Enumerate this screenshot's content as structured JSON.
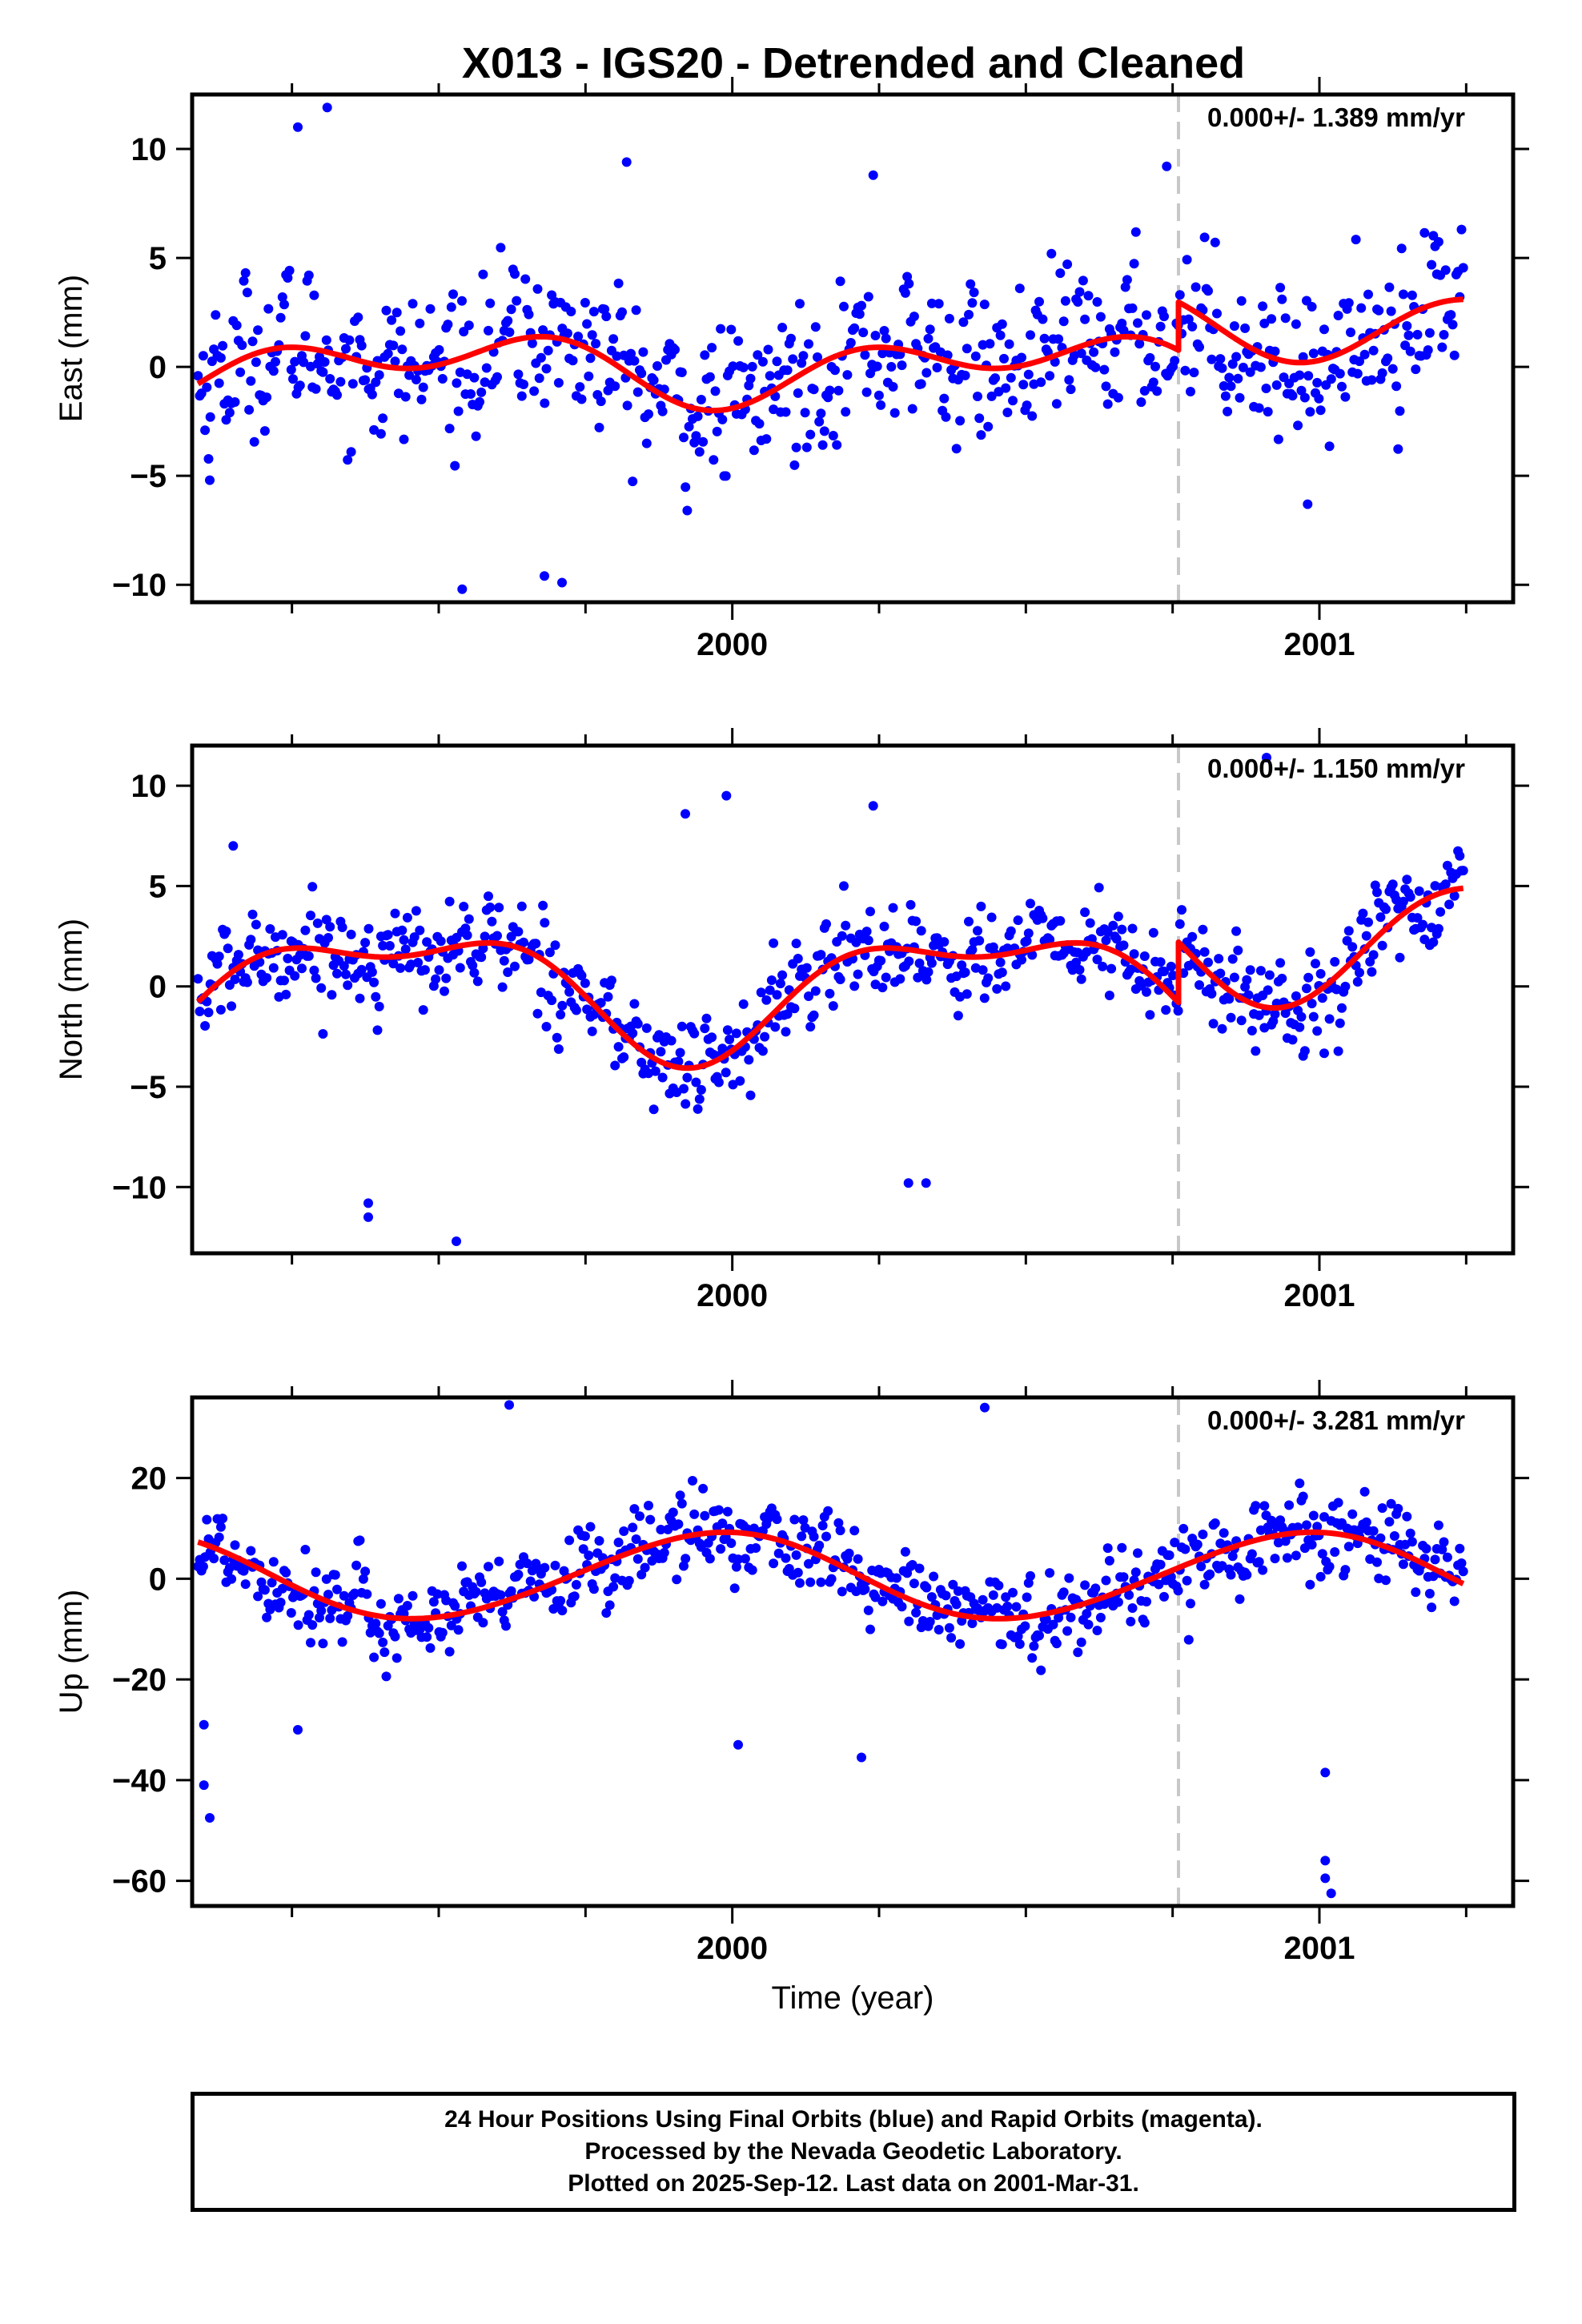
{
  "title": "X013 - IGS20 - Detrended and Cleaned",
  "chart_data": [
    {
      "type": "scatter",
      "ylabel": "East (mm)",
      "xlabel": "",
      "xlim": [
        1999.08,
        2001.33
      ],
      "ylim": [
        -10.8,
        12.5
      ],
      "yticks": [
        -10,
        -5,
        0,
        5,
        10
      ],
      "xtick_labels": [
        "2000",
        "2001"
      ],
      "annotation": "0.000+/- 1.389 mm/yr",
      "break_epoch": 2000.76,
      "fit": {
        "offset": 0.0,
        "a1": 0.0,
        "b1": -1.0,
        "a2": 0.5,
        "b2": -0.9,
        "break_jump": 2.2
      },
      "scatter_sigma": 2.6,
      "outliers": [
        [
          1999.26,
          11.0
        ],
        [
          1999.31,
          11.9
        ],
        [
          1999.54,
          -10.2
        ],
        [
          1999.68,
          -9.6
        ],
        [
          1999.71,
          -9.9
        ],
        [
          1999.82,
          9.4
        ],
        [
          2000.24,
          8.8
        ],
        [
          2000.74,
          9.2
        ],
        [
          1999.11,
          -5.2
        ],
        [
          2000.98,
          -6.3
        ]
      ]
    },
    {
      "type": "scatter",
      "ylabel": "North (mm)",
      "xlabel": "",
      "xlim": [
        1999.08,
        2001.33
      ],
      "ylim": [
        -13.3,
        12.0
      ],
      "yticks": [
        -10,
        -5,
        0,
        5,
        10
      ],
      "xtick_labels": [
        "2000",
        "2001"
      ],
      "annotation": "0.000+/- 1.150 mm/yr",
      "break_epoch": 2000.76,
      "fit": {
        "offset": 0.0,
        "a1": 1.2,
        "b1": -2.5,
        "a2": 1.1,
        "b2": -0.7,
        "break_jump": 3.0
      },
      "scatter_sigma": 1.8,
      "outliers": [
        [
          1999.15,
          7.0
        ],
        [
          1999.38,
          -11.5
        ],
        [
          1999.38,
          -10.8
        ],
        [
          1999.53,
          -12.7
        ],
        [
          1999.92,
          8.6
        ],
        [
          1999.99,
          9.5
        ],
        [
          2000.24,
          9.0
        ],
        [
          2000.3,
          -9.8
        ],
        [
          2000.33,
          -9.8
        ],
        [
          2000.91,
          11.4
        ]
      ]
    },
    {
      "type": "scatter",
      "ylabel": "Up (mm)",
      "xlabel": "Time (year)",
      "xlim": [
        1999.08,
        2001.33
      ],
      "ylim": [
        -65,
        36
      ],
      "yticks": [
        -60,
        -40,
        -20,
        0,
        20
      ],
      "xtick_labels": [
        "2000",
        "2001"
      ],
      "annotation": "0.000+/- 3.281 mm/yr",
      "break_epoch": 2000.76,
      "fit": {
        "offset": 0.5,
        "a1": -1.5,
        "b1": 8.4,
        "a2": 0.4,
        "b2": 0.3,
        "break_jump": 0.0
      },
      "scatter_sigma": 6.5,
      "outliers": [
        [
          1999.1,
          -29.0
        ],
        [
          1999.1,
          -41.0
        ],
        [
          1999.11,
          -47.5
        ],
        [
          1999.26,
          -30.0
        ],
        [
          1999.62,
          34.5
        ],
        [
          2000.01,
          -33.0
        ],
        [
          2000.22,
          -35.5
        ],
        [
          2000.43,
          34.0
        ],
        [
          2001.01,
          -38.5
        ],
        [
          2001.01,
          -56.0
        ],
        [
          2001.01,
          -59.5
        ],
        [
          2001.02,
          -62.5
        ]
      ]
    }
  ],
  "footer": {
    "line1": "24 Hour Positions Using Final Orbits (blue) and Rapid Orbits (magenta).",
    "line2": "Processed by the Nevada Geodetic Laboratory.",
    "line3": "Plotted on 2025-Sep-12. Last data on 2001-Mar-31."
  },
  "colors": {
    "points": "#0000ff",
    "fit": "#ff0000",
    "break_line": "#c8c8c8",
    "frame": "#000000"
  }
}
